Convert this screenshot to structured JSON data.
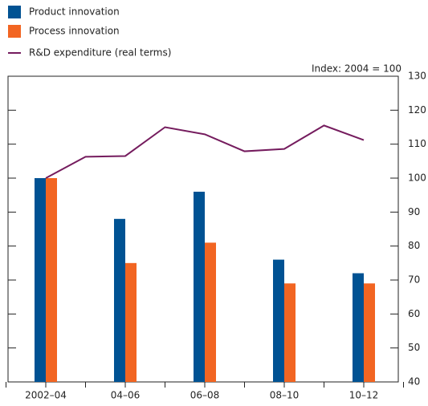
{
  "chart_data": {
    "type": "bar_line",
    "axis_note": "Index:  2004 = 100",
    "categories": [
      "2002–04",
      "04–06",
      "06–08",
      "08–10",
      "10–12"
    ],
    "series": [
      {
        "name": "Product innovation",
        "color": "#005293",
        "values": [
          100,
          88,
          96,
          76,
          72
        ]
      },
      {
        "name": "Process innovation",
        "color": "#f26522",
        "values": [
          100,
          75,
          81,
          69,
          69
        ]
      }
    ],
    "line_series": {
      "name": "R&D expenditure (real terms)",
      "color": "#751c5e",
      "values": [
        100,
        106.3,
        106.5,
        115,
        112.9,
        107.9,
        108.6,
        115.5,
        111.2
      ]
    },
    "ylim": [
      40,
      130
    ],
    "yticks": [
      40,
      50,
      60,
      70,
      80,
      90,
      100,
      110,
      120,
      130
    ]
  }
}
